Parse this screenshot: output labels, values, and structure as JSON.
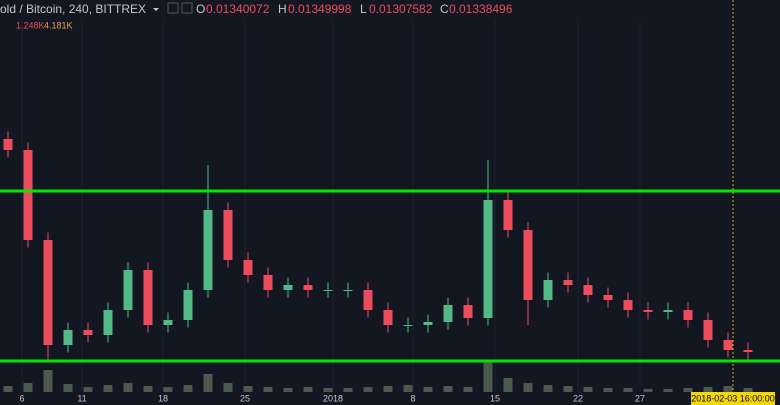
{
  "header": {
    "symbol": "old / Bitcoin, 240, BITTREX",
    "o_label": "O",
    "o": "0.01340072",
    "h_label": "H",
    "h": "0.01349998",
    "l_label": "L",
    "l": "0.01307582",
    "c_label": "C",
    "c": "0.01338496",
    "vol_1": "1.248K",
    "vol_2": "4.181K"
  },
  "crosshair_label": "2018-02-03 16:00:00",
  "chart_data": {
    "type": "candlestick",
    "x_labels": [
      "6",
      "11",
      "18",
      "25",
      "2018",
      "8",
      "15",
      "22",
      "27"
    ],
    "open": [
      0.056,
      0.0538,
      0.0358,
      0.0148,
      0.0178,
      0.0168,
      0.0218,
      0.0298,
      0.0188,
      0.0198,
      0.0258,
      0.0418,
      0.0318,
      0.0288,
      0.0258,
      0.0268,
      0.0258,
      0.0258,
      0.0258,
      0.0218,
      0.0188,
      0.0188,
      0.0194,
      0.0228,
      0.0202,
      0.0438,
      0.0378,
      0.0238,
      0.0278,
      0.0268,
      0.0248,
      0.0238,
      0.0218,
      0.0214,
      0.0218,
      0.0198,
      0.0158,
      0.0138
    ],
    "high": [
      0.0575,
      0.0553,
      0.0373,
      0.0193,
      0.0193,
      0.0233,
      0.0313,
      0.0313,
      0.0213,
      0.0273,
      0.0508,
      0.0433,
      0.0333,
      0.0303,
      0.0283,
      0.0283,
      0.0273,
      0.0273,
      0.0273,
      0.0233,
      0.0203,
      0.0209,
      0.0243,
      0.0243,
      0.0518,
      0.0453,
      0.0393,
      0.0293,
      0.0293,
      0.0283,
      0.0263,
      0.0253,
      0.0233,
      0.0233,
      0.0233,
      0.0213,
      0.0173,
      0.0153
    ],
    "low": [
      0.0523,
      0.0343,
      0.0118,
      0.0133,
      0.0153,
      0.0153,
      0.0203,
      0.0173,
      0.0173,
      0.0183,
      0.0243,
      0.0303,
      0.0273,
      0.0243,
      0.0243,
      0.0243,
      0.0243,
      0.0243,
      0.0203,
      0.0173,
      0.0173,
      0.0173,
      0.0179,
      0.0187,
      0.0187,
      0.0363,
      0.0188,
      0.0223,
      0.0253,
      0.0233,
      0.0223,
      0.0203,
      0.0199,
      0.0199,
      0.0183,
      0.0143,
      0.0123,
      0.0119
    ],
    "close": [
      0.0538,
      0.0358,
      0.0148,
      0.0178,
      0.0168,
      0.0218,
      0.0298,
      0.0188,
      0.0198,
      0.0258,
      0.0418,
      0.0318,
      0.0288,
      0.0258,
      0.0268,
      0.0258,
      0.0258,
      0.0258,
      0.0218,
      0.0188,
      0.0188,
      0.0194,
      0.0228,
      0.0202,
      0.0438,
      0.0378,
      0.0238,
      0.0278,
      0.0268,
      0.0248,
      0.0238,
      0.0218,
      0.0214,
      0.0218,
      0.0198,
      0.0158,
      0.0138,
      0.0134
    ],
    "volume": [
      6000,
      9000,
      22000,
      8000,
      5000,
      7000,
      9000,
      6000,
      5000,
      7000,
      18000,
      9000,
      6000,
      5000,
      4000,
      5000,
      4000,
      4000,
      5000,
      6000,
      7000,
      5000,
      6000,
      5000,
      30000,
      14000,
      9000,
      7000,
      6000,
      5000,
      4000,
      4000,
      3000,
      3000,
      4000,
      5000,
      6000,
      4000
    ],
    "ylim": [
      0.0078,
      0.0798
    ],
    "vlim": [
      0,
      40000
    ],
    "up_color": "#53b987",
    "down_color": "#eb4d5c",
    "volume_color": "#4a5a4e",
    "levels": [
      0.0456,
      0.0116
    ],
    "level_color": "#00e600"
  }
}
